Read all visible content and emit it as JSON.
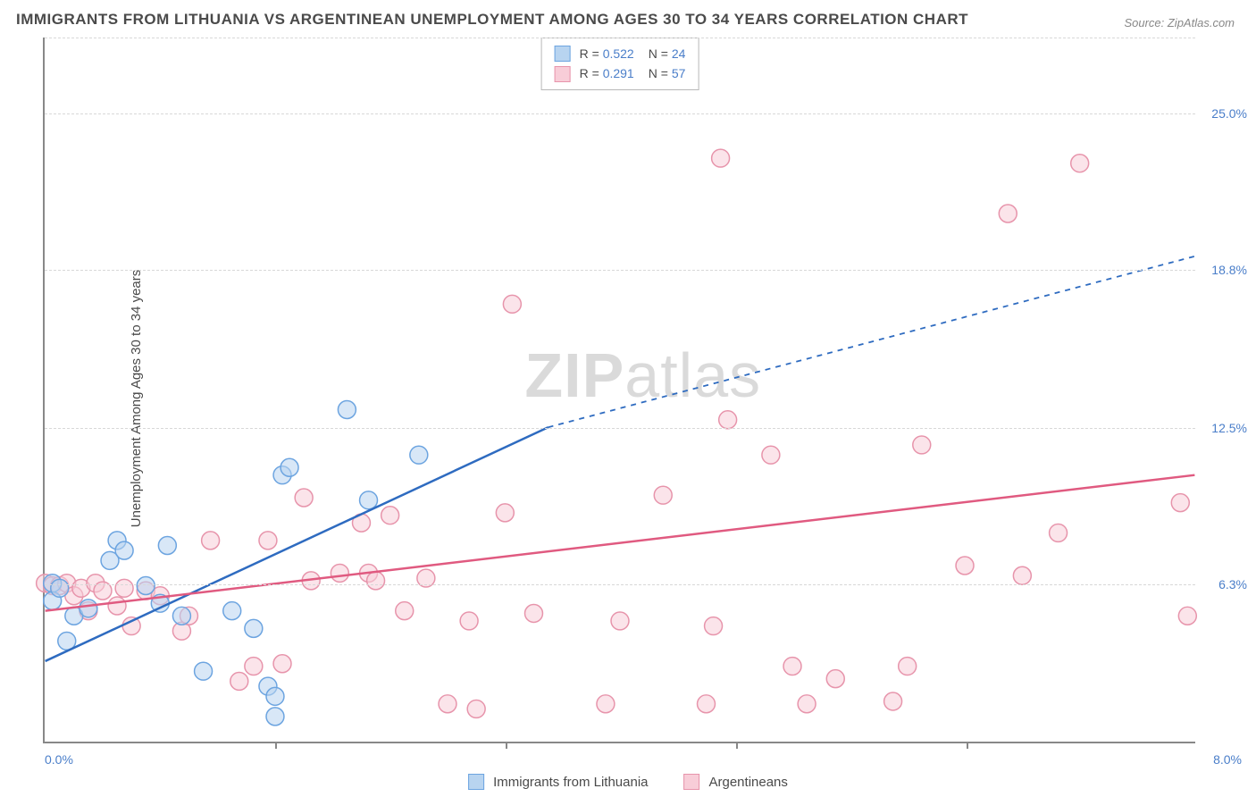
{
  "title": "IMMIGRANTS FROM LITHUANIA VS ARGENTINEAN UNEMPLOYMENT AMONG AGES 30 TO 34 YEARS CORRELATION CHART",
  "source": "Source: ZipAtlas.com",
  "y_axis_label": "Unemployment Among Ages 30 to 34 years",
  "watermark": {
    "bold": "ZIP",
    "rest": "atlas"
  },
  "colors": {
    "series1_fill": "#b8d4f0",
    "series1_stroke": "#6ca4e0",
    "series1_line": "#2e6bc0",
    "series2_fill": "#f8cdd8",
    "series2_stroke": "#e794ab",
    "series2_line": "#e05a80",
    "axis": "#888888",
    "grid": "#d8d8d8",
    "tick_text": "#4a7ec9",
    "title_text": "#4a4a4a",
    "background": "#ffffff"
  },
  "chart": {
    "type": "scatter",
    "xlim": [
      0.0,
      8.0
    ],
    "ylim": [
      0.0,
      28.0
    ],
    "y_ticks": [
      {
        "value": 6.3,
        "label": "6.3%"
      },
      {
        "value": 12.5,
        "label": "12.5%"
      },
      {
        "value": 18.8,
        "label": "18.8%"
      },
      {
        "value": 25.0,
        "label": "25.0%"
      }
    ],
    "x_ticks_at": [
      1.6,
      3.2,
      4.8,
      6.4
    ],
    "x_min_label": "0.0%",
    "x_max_label": "8.0%",
    "marker_radius": 10,
    "marker_fill_opacity": 0.55,
    "line_width": 2.5
  },
  "legend_top": [
    {
      "swatch_fill": "#b8d4f0",
      "swatch_stroke": "#6ca4e0",
      "r": "0.522",
      "n": "24"
    },
    {
      "swatch_fill": "#f8cdd8",
      "swatch_stroke": "#e794ab",
      "r": "0.291",
      "n": "57"
    }
  ],
  "legend_bottom": [
    {
      "swatch_fill": "#b8d4f0",
      "swatch_stroke": "#6ca4e0",
      "label": "Immigrants from Lithuania"
    },
    {
      "swatch_fill": "#f8cdd8",
      "swatch_stroke": "#e794ab",
      "label": "Argentineans"
    }
  ],
  "series": [
    {
      "name": "Immigrants from Lithuania",
      "color_fill": "#b8d4f0",
      "color_stroke": "#6ca4e0",
      "trendline": {
        "color": "#2e6bc0",
        "x1": 0.0,
        "y1": 3.2,
        "x2": 3.5,
        "y2": 12.5,
        "dash_extend_to_x": 8.0,
        "dash_extend_to_y": 19.3
      },
      "points": [
        [
          0.05,
          5.6
        ],
        [
          0.05,
          6.3
        ],
        [
          0.1,
          6.1
        ],
        [
          0.15,
          4.0
        ],
        [
          0.2,
          5.0
        ],
        [
          0.3,
          5.3
        ],
        [
          0.45,
          7.2
        ],
        [
          0.5,
          8.0
        ],
        [
          0.55,
          7.6
        ],
        [
          0.7,
          6.2
        ],
        [
          0.8,
          5.5
        ],
        [
          0.85,
          7.8
        ],
        [
          0.95,
          5.0
        ],
        [
          1.1,
          2.8
        ],
        [
          1.3,
          5.2
        ],
        [
          1.45,
          4.5
        ],
        [
          1.55,
          2.2
        ],
        [
          1.6,
          1.0
        ],
        [
          1.6,
          1.8
        ],
        [
          1.65,
          10.6
        ],
        [
          1.7,
          10.9
        ],
        [
          2.1,
          13.2
        ],
        [
          2.25,
          9.6
        ],
        [
          2.6,
          11.4
        ]
      ]
    },
    {
      "name": "Argentineans",
      "color_fill": "#f8cdd8",
      "color_stroke": "#e794ab",
      "trendline": {
        "color": "#e05a80",
        "x1": 0.0,
        "y1": 5.2,
        "x2": 8.0,
        "y2": 10.6
      },
      "points": [
        [
          0.0,
          6.3
        ],
        [
          0.05,
          6.2
        ],
        [
          0.1,
          6.2
        ],
        [
          0.15,
          6.3
        ],
        [
          0.2,
          5.8
        ],
        [
          0.25,
          6.1
        ],
        [
          0.3,
          5.2
        ],
        [
          0.35,
          6.3
        ],
        [
          0.4,
          6.0
        ],
        [
          0.5,
          5.4
        ],
        [
          0.55,
          6.1
        ],
        [
          0.6,
          4.6
        ],
        [
          0.7,
          6.0
        ],
        [
          0.8,
          5.8
        ],
        [
          0.95,
          4.4
        ],
        [
          1.0,
          5.0
        ],
        [
          1.15,
          8.0
        ],
        [
          1.35,
          2.4
        ],
        [
          1.45,
          3.0
        ],
        [
          1.55,
          8.0
        ],
        [
          1.65,
          3.1
        ],
        [
          1.8,
          9.7
        ],
        [
          1.85,
          6.4
        ],
        [
          2.05,
          6.7
        ],
        [
          2.2,
          8.7
        ],
        [
          2.25,
          6.7
        ],
        [
          2.3,
          6.4
        ],
        [
          2.4,
          9.0
        ],
        [
          2.5,
          5.2
        ],
        [
          2.65,
          6.5
        ],
        [
          2.8,
          1.5
        ],
        [
          2.95,
          4.8
        ],
        [
          3.0,
          1.3
        ],
        [
          3.2,
          9.1
        ],
        [
          3.25,
          17.4
        ],
        [
          3.4,
          5.1
        ],
        [
          3.9,
          1.5
        ],
        [
          4.0,
          4.8
        ],
        [
          4.3,
          9.8
        ],
        [
          4.6,
          1.5
        ],
        [
          4.65,
          4.6
        ],
        [
          4.7,
          23.2
        ],
        [
          4.75,
          12.8
        ],
        [
          5.05,
          11.4
        ],
        [
          5.2,
          3.0
        ],
        [
          5.3,
          1.5
        ],
        [
          5.5,
          2.5
        ],
        [
          5.9,
          1.6
        ],
        [
          6.0,
          3.0
        ],
        [
          6.1,
          11.8
        ],
        [
          6.4,
          7.0
        ],
        [
          6.7,
          21.0
        ],
        [
          6.8,
          6.6
        ],
        [
          7.05,
          8.3
        ],
        [
          7.2,
          23.0
        ],
        [
          7.9,
          9.5
        ],
        [
          7.95,
          5.0
        ]
      ]
    }
  ]
}
